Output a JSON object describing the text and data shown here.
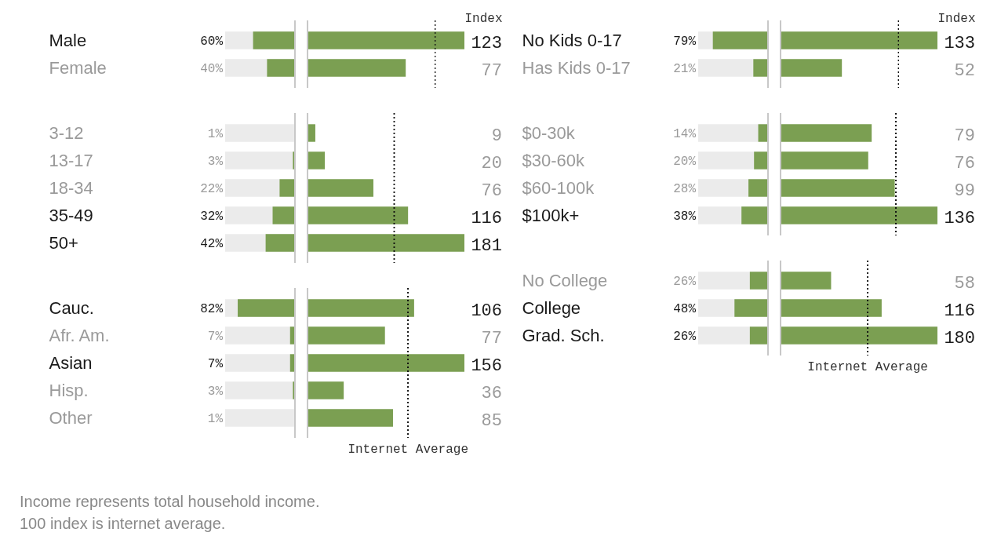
{
  "chart_data": [
    {
      "type": "bar",
      "orientation": "horizontal",
      "categories": [
        "Male",
        "Female"
      ],
      "values": [
        60,
        40
      ],
      "value_labels": [
        "60%",
        "40%"
      ],
      "color": "#7b9f52",
      "xlim": [
        100,
        0
      ],
      "tick_labels": "y",
      "bands": [
        {
          "axis": "x",
          "from": 0,
          "to": 100,
          "color": "#ebebeb"
        }
      ]
    },
    {
      "type": "bar",
      "orientation": "horizontal",
      "categories": [
        null,
        null
      ],
      "values": [
        123,
        77
      ],
      "data_labels": true,
      "color": "#7b9f52",
      "tick_labels": false,
      "xlabel": "Index",
      "ref_lines": [
        {
          "axis": "x",
          "value": 100,
          "line_style": "dotted"
        }
      ]
    },
    {
      "type": "bar",
      "orientation": "horizontal",
      "categories": [
        "No Kids 0-17",
        "Has Kids 0-17"
      ],
      "values": [
        79,
        21
      ],
      "value_labels": [
        "79%",
        "21%"
      ],
      "color": "#7b9f52",
      "xlim": [
        100,
        0
      ],
      "tick_labels": "y",
      "bands": [
        {
          "axis": "x",
          "from": 0,
          "to": 100,
          "color": "#ebebeb"
        }
      ]
    },
    {
      "type": "bar",
      "orientation": "horizontal",
      "categories": [
        null,
        null
      ],
      "values": [
        133,
        52
      ],
      "data_labels": true,
      "color": "#7b9f52",
      "tick_labels": false,
      "xlabel": "Index",
      "ref_lines": [
        {
          "axis": "x",
          "value": 100,
          "line_style": "dotted"
        }
      ]
    },
    {
      "type": "bar",
      "orientation": "horizontal",
      "categories": [
        "3-12",
        "13-17",
        "18-34",
        "35-49",
        "50+"
      ],
      "values": [
        1,
        3,
        22,
        32,
        42
      ],
      "value_labels": [
        "1%",
        "3%",
        "22%",
        "32%",
        "42%"
      ],
      "color": "#7b9f52",
      "xlim": [
        100,
        0
      ],
      "tick_labels": "y",
      "bands": [
        {
          "axis": "x",
          "from": 0,
          "to": 100,
          "color": "#ebebeb"
        }
      ]
    },
    {
      "type": "bar",
      "orientation": "horizontal",
      "categories": [
        null,
        null,
        null,
        null,
        null
      ],
      "values": [
        9,
        20,
        76,
        116,
        181
      ],
      "data_labels": true,
      "color": "#7b9f52",
      "tick_labels": false,
      "ref_lines": [
        {
          "axis": "x",
          "value": 100,
          "line_style": "dotted"
        }
      ]
    },
    {
      "type": "bar",
      "orientation": "horizontal",
      "categories": [
        "$0-30k",
        "$30-60k",
        "$60-100k",
        "$100k+"
      ],
      "values": [
        14,
        20,
        28,
        38
      ],
      "value_labels": [
        "14%",
        "20%",
        "28%",
        "38%"
      ],
      "color": "#7b9f52",
      "xlim": [
        100,
        0
      ],
      "tick_labels": "y",
      "bands": [
        {
          "axis": "x",
          "from": 0,
          "to": 100,
          "color": "#ebebeb"
        }
      ]
    },
    {
      "type": "bar",
      "orientation": "horizontal",
      "categories": [
        null,
        null,
        null,
        null
      ],
      "values": [
        79,
        76,
        99,
        136
      ],
      "data_labels": true,
      "color": "#7b9f52",
      "tick_labels": false,
      "ref_lines": [
        {
          "axis": "x",
          "value": 100,
          "line_style": "dotted"
        }
      ]
    },
    {
      "type": "bar",
      "orientation": "horizontal",
      "categories": [
        "Cauc.",
        "Afr. Am.",
        "Asian",
        "Hisp.",
        "Other"
      ],
      "values": [
        82,
        7,
        7,
        3,
        1
      ],
      "value_labels": [
        "82%",
        "7%",
        "7%",
        "3%",
        "1%"
      ],
      "color": "#7b9f52",
      "xlim": [
        100,
        0
      ],
      "tick_labels": "y",
      "bands": [
        {
          "axis": "x",
          "from": 0,
          "to": 100,
          "color": "#ebebeb"
        }
      ],
      "annotations": [
        "Income represents total household income.",
        "100 index is internet average."
      ]
    },
    {
      "type": "bar",
      "orientation": "horizontal",
      "categories": [
        null,
        null,
        null,
        null,
        null
      ],
      "values": [
        106,
        77,
        156,
        36,
        85
      ],
      "data_labels": true,
      "color": "#7b9f52",
      "tick_labels": false,
      "ref_lines": [
        {
          "axis": "x",
          "value": 100,
          "label": "Internet Average",
          "line_style": "dotted"
        }
      ]
    },
    {
      "type": "bar",
      "orientation": "horizontal",
      "categories": [
        "No College",
        "College",
        "Grad. Sch."
      ],
      "values": [
        26,
        48,
        26
      ],
      "value_labels": [
        "26%",
        "48%",
        "26%"
      ],
      "color": "#7b9f52",
      "xlim": [
        100,
        0
      ],
      "tick_labels": "y",
      "bands": [
        {
          "axis": "x",
          "from": 0,
          "to": 100,
          "color": "#ebebeb"
        }
      ]
    },
    {
      "type": "bar",
      "orientation": "horizontal",
      "categories": [
        null,
        null,
        null
      ],
      "values": [
        58,
        116,
        180
      ],
      "data_labels": true,
      "color": "#7b9f52",
      "tick_labels": false,
      "ref_lines": [
        {
          "axis": "x",
          "value": 100,
          "label": "Internet Average",
          "line_style": "dotted"
        }
      ]
    }
  ]
}
